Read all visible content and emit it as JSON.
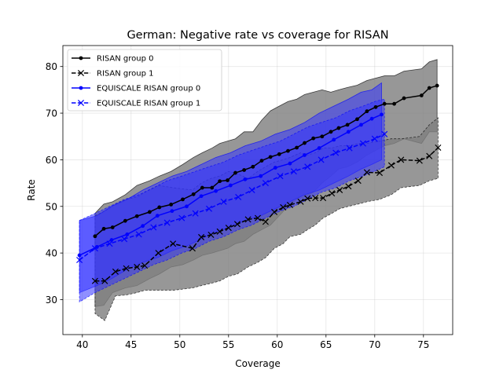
{
  "chart_data": {
    "type": "line",
    "title": "German: Negative rate vs coverage for RISAN",
    "xlabel": "Coverage",
    "ylabel": "Rate",
    "xlim": [
      38,
      78
    ],
    "ylim": [
      22.5,
      84.5
    ],
    "xticks": [
      "40",
      "45",
      "50",
      "55",
      "60",
      "65",
      "70",
      "75"
    ],
    "yticks": [
      "30",
      "40",
      "50",
      "60",
      "70",
      "80"
    ],
    "grid": true,
    "legend": {
      "placement": "top-left"
    },
    "series": [
      {
        "name": "RISAN group 0",
        "color": "#000000",
        "dash": false,
        "marker": "dot",
        "band_color": "#808080",
        "x": [
          41.3,
          42.2,
          43.1,
          44.4,
          45.6,
          46.9,
          47.9,
          49.1,
          50.3,
          51.4,
          52.3,
          53.3,
          54.1,
          54.9,
          55.7,
          56.6,
          57.5,
          58.4,
          59.3,
          60.2,
          61.1,
          62.0,
          62.8,
          63.7,
          64.6,
          65.5,
          66.3,
          67.2,
          68.2,
          69.2,
          70.1,
          71.0,
          72.0,
          73.0,
          74.8,
          75.6,
          76.4
        ],
        "y": [
          43.6,
          45.2,
          45.5,
          46.9,
          47.9,
          48.8,
          49.8,
          50.4,
          51.5,
          52.6,
          54.0,
          54.0,
          55.4,
          55.6,
          57.2,
          57.8,
          58.5,
          59.8,
          60.6,
          61.2,
          61.9,
          62.6,
          63.6,
          64.6,
          65.0,
          66.0,
          66.8,
          67.5,
          68.7,
          70.4,
          71.3,
          72.0,
          72.0,
          73.2,
          73.8,
          75.4,
          75.9
        ],
        "band_low": [
          28.5,
          28.8,
          31.5,
          32.5,
          33.0,
          34.5,
          35.5,
          37.0,
          37.5,
          38.5,
          39.5,
          40.0,
          40.5,
          41.0,
          42.0,
          42.5,
          44.0,
          45.0,
          46.0,
          48.0,
          50.0,
          51.5,
          52.0,
          53.0,
          55.0,
          56.5,
          58.0,
          58.5,
          59.5,
          61.0,
          62.0,
          63.0,
          63.5,
          64.5,
          63.5,
          66.0,
          66.0
        ],
        "band_high": [
          48.5,
          50.5,
          51.0,
          52.5,
          54.5,
          55.5,
          56.5,
          57.5,
          59.0,
          60.5,
          61.5,
          62.5,
          63.5,
          64.0,
          64.5,
          66.0,
          66.0,
          68.5,
          70.5,
          71.5,
          72.5,
          73.0,
          74.0,
          74.5,
          75.0,
          74.5,
          75.0,
          75.5,
          76.0,
          77.0,
          77.5,
          78.0,
          78.0,
          79.0,
          79.5,
          81.0,
          81.5
        ]
      },
      {
        "name": "RISAN group 1",
        "color": "#000000",
        "dash": true,
        "marker": "x",
        "band_color": "#808080",
        "x": [
          41.3,
          42.3,
          43.4,
          44.5,
          45.6,
          46.4,
          47.8,
          49.3,
          51.3,
          52.2,
          53.2,
          54.1,
          55.0,
          55.9,
          57.0,
          58.0,
          58.8,
          59.7,
          60.6,
          61.3,
          62.4,
          63.1,
          63.9,
          64.7,
          65.6,
          66.4,
          67.3,
          68.3,
          69.2,
          70.5,
          71.7,
          72.7,
          74.6,
          75.6,
          76.5
        ],
        "y": [
          34.0,
          34.0,
          36.0,
          36.7,
          37.0,
          37.3,
          40.0,
          42.0,
          41.0,
          43.4,
          43.9,
          44.6,
          45.4,
          46.2,
          47.2,
          47.5,
          46.7,
          48.8,
          49.8,
          50.3,
          51.0,
          51.7,
          51.8,
          51.8,
          52.8,
          53.5,
          54.3,
          55.5,
          57.3,
          57.2,
          58.8,
          60.0,
          59.8,
          60.8,
          62.6
        ],
        "band_low": [
          27.0,
          25.5,
          30.8,
          31.0,
          31.5,
          32.0,
          32.0,
          32.0,
          32.5,
          33.0,
          33.5,
          34.0,
          35.0,
          35.5,
          37.0,
          38.0,
          39.0,
          41.0,
          42.0,
          43.5,
          44.0,
          45.0,
          46.0,
          47.5,
          48.5,
          49.5,
          50.0,
          50.5,
          51.0,
          51.5,
          52.5,
          54.0,
          54.5,
          55.5,
          56.0
        ],
        "band_high": [
          48.0,
          49.0,
          50.5,
          51.5,
          52.0,
          53.0,
          54.5,
          54.0,
          53.5,
          55.0,
          56.0,
          56.5,
          57.5,
          57.0,
          56.0,
          57.5,
          58.5,
          59.5,
          60.0,
          60.5,
          61.5,
          61.0,
          61.5,
          62.5,
          62.5,
          63.0,
          63.0,
          63.5,
          63.5,
          64.0,
          64.5,
          64.5,
          65.0,
          67.5,
          69.0
        ]
      },
      {
        "name": "EQUISCALE RISAN group 0",
        "color": "#0000ff",
        "dash": false,
        "marker": "dot",
        "band_color": "#3333ff",
        "x": [
          39.7,
          41.5,
          43.0,
          44.6,
          46.2,
          47.7,
          49.2,
          50.7,
          52.2,
          53.7,
          55.2,
          56.7,
          58.3,
          59.8,
          61.3,
          62.8,
          64.3,
          65.8,
          67.3,
          68.6,
          69.7,
          70.7
        ],
        "y": [
          39.5,
          41.3,
          42.8,
          44.0,
          45.8,
          48.0,
          49.0,
          50.0,
          52.2,
          53.3,
          54.5,
          55.8,
          56.5,
          58.3,
          59.2,
          61.0,
          62.5,
          64.3,
          66.0,
          67.5,
          68.8,
          69.7
        ],
        "band_low": [
          31.5,
          33.0,
          34.5,
          36.5,
          38.0,
          39.0,
          40.5,
          41.5,
          43.0,
          44.5,
          45.5,
          47.0,
          48.0,
          49.5,
          51.0,
          52.5,
          53.5,
          55.0,
          56.5,
          58.0,
          59.0,
          60.0
        ],
        "band_high": [
          47.0,
          48.0,
          50.0,
          51.5,
          53.5,
          55.0,
          56.5,
          57.5,
          59.0,
          60.5,
          61.5,
          63.0,
          64.0,
          65.5,
          66.5,
          68.0,
          70.0,
          71.5,
          73.0,
          74.5,
          75.0,
          76.5
        ]
      },
      {
        "name": "EQUISCALE RISAN group 1",
        "color": "#0000ff",
        "dash": true,
        "marker": "x",
        "band_color": "#3333ff",
        "x": [
          39.7,
          41.3,
          42.8,
          44.3,
          45.8,
          47.3,
          48.7,
          50.2,
          51.6,
          53.0,
          54.5,
          56.0,
          57.4,
          58.8,
          60.3,
          61.7,
          63.1,
          64.5,
          66.0,
          67.4,
          68.8,
          70.0,
          71.0
        ],
        "y": [
          38.5,
          41.0,
          42.0,
          43.0,
          44.0,
          45.5,
          46.5,
          47.5,
          48.5,
          49.5,
          51.0,
          52.0,
          53.5,
          55.0,
          56.5,
          57.5,
          58.5,
          60.0,
          61.5,
          62.5,
          63.5,
          64.5,
          65.5
        ],
        "band_low": [
          29.5,
          31.5,
          33.0,
          34.5,
          36.0,
          37.5,
          38.5,
          40.0,
          41.0,
          42.5,
          43.5,
          45.0,
          46.0,
          47.5,
          49.0,
          50.0,
          51.5,
          53.0,
          54.0,
          55.5,
          56.5,
          57.5,
          58.5
        ],
        "band_high": [
          47.0,
          48.5,
          50.0,
          51.5,
          52.5,
          54.0,
          55.5,
          56.5,
          57.5,
          58.5,
          59.5,
          61.0,
          62.0,
          63.0,
          64.0,
          65.5,
          67.0,
          68.0,
          69.0,
          70.5,
          71.5,
          72.5,
          73.0
        ]
      }
    ]
  }
}
